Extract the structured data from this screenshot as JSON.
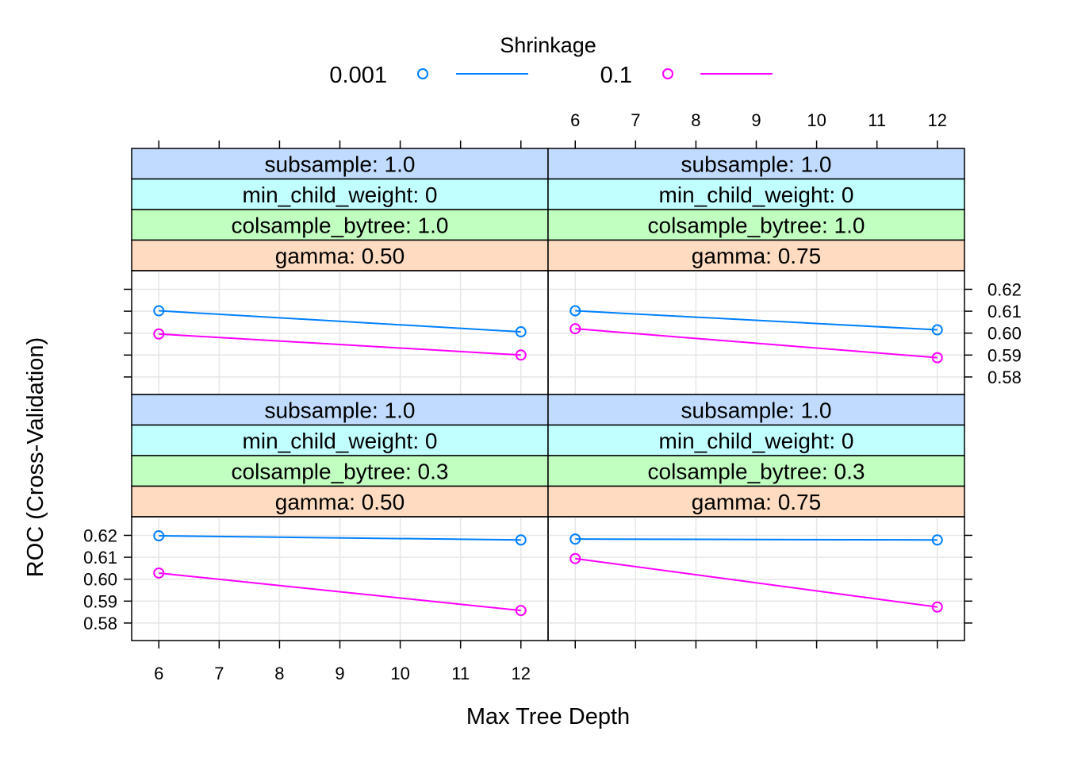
{
  "chart_data": {
    "type": "line",
    "legend": {
      "title": "Shrinkage",
      "placement": "top",
      "entries": [
        {
          "label": "0.001",
          "color": "#0080ff"
        },
        {
          "label": "0.1",
          "color": "#ff00ff"
        }
      ]
    },
    "xlabel": "Max Tree Depth",
    "ylabel": "ROC (Cross-Validation)",
    "xlim": [
      5.55,
      12.45
    ],
    "ylim": [
      0.572,
      0.6285
    ],
    "x_ticks": [
      6,
      7,
      8,
      9,
      10,
      11,
      12
    ],
    "y_ticks": [
      "0.58",
      "0.59",
      "0.60",
      "0.61",
      "0.62"
    ],
    "grid": true,
    "strip_colors": [
      "#c1dbff",
      "#c1ffff",
      "#c1ffc1",
      "#ffdbc1"
    ],
    "panels": [
      {
        "strips": [
          "subsample: 1.0",
          "min_child_weight:  0",
          "colsample_bytree: 1.0",
          "gamma: 0.50"
        ],
        "series": [
          {
            "name": "0.001",
            "x": [
              6,
              12
            ],
            "y": [
              0.6102,
              0.6006
            ]
          },
          {
            "name": "0.1",
            "x": [
              6,
              12
            ],
            "y": [
              0.5996,
              0.59
            ]
          }
        ]
      },
      {
        "strips": [
          "subsample: 1.0",
          "min_child_weight:  0",
          "colsample_bytree: 1.0",
          "gamma: 0.75"
        ],
        "series": [
          {
            "name": "0.001",
            "x": [
              6,
              12
            ],
            "y": [
              0.6102,
              0.6015
            ]
          },
          {
            "name": "0.1",
            "x": [
              6,
              12
            ],
            "y": [
              0.602,
              0.5888
            ]
          }
        ]
      },
      {
        "strips": [
          "subsample: 1.0",
          "min_child_weight:  0",
          "colsample_bytree: 0.3",
          "gamma: 0.50"
        ],
        "series": [
          {
            "name": "0.001",
            "x": [
              6,
              12
            ],
            "y": [
              0.6198,
              0.6179
            ]
          },
          {
            "name": "0.1",
            "x": [
              6,
              12
            ],
            "y": [
              0.6028,
              0.5857
            ]
          }
        ]
      },
      {
        "strips": [
          "subsample: 1.0",
          "min_child_weight:  0",
          "colsample_bytree: 0.3",
          "gamma: 0.75"
        ],
        "series": [
          {
            "name": "0.001",
            "x": [
              6,
              12
            ],
            "y": [
              0.6183,
              0.6179
            ]
          },
          {
            "name": "0.1",
            "x": [
              6,
              12
            ],
            "y": [
              0.6094,
              0.5873
            ]
          }
        ]
      }
    ]
  }
}
